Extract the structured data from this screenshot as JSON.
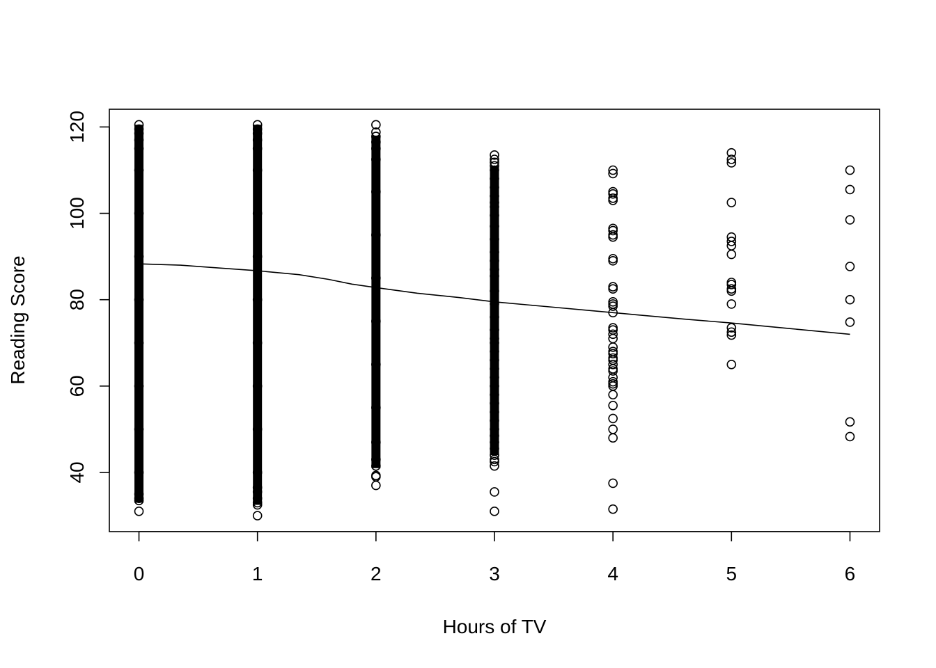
{
  "chart_data": {
    "type": "scatter",
    "title": "",
    "xlabel": "Hours of TV",
    "ylabel": "Reading Score",
    "xlim": [
      -0.25,
      6.25
    ],
    "ylim": [
      26.3,
      124.1
    ],
    "x_ticks": [
      0,
      1,
      2,
      3,
      4,
      5,
      6
    ],
    "y_ticks": [
      40,
      60,
      80,
      100,
      120
    ],
    "dense_bands": [
      {
        "x": 0,
        "y_min": 33.0,
        "y_max": 120.5
      },
      {
        "x": 1,
        "y_min": 32.5,
        "y_max": 120.5
      },
      {
        "x": 2,
        "y_min": 41.0,
        "y_max": 118.0
      },
      {
        "x": 3,
        "y_min": 44.0,
        "y_max": 111.0
      }
    ],
    "series": [
      {
        "name": "x0",
        "x": 0,
        "y": [
          120.5,
          119.5,
          118.5,
          117,
          115,
          110,
          100,
          90,
          80,
          70,
          60,
          50,
          40,
          35,
          34,
          33.5,
          31.0
        ]
      },
      {
        "name": "x1",
        "x": 1,
        "y": [
          120.5,
          119.5,
          118.5,
          117,
          115,
          110,
          100,
          90,
          80,
          70,
          60,
          50,
          40,
          36.5,
          35.5,
          34,
          33,
          32.5,
          30.0
        ]
      },
      {
        "name": "x2",
        "x": 2,
        "y": [
          120.5,
          118.8,
          117.8,
          116.5,
          115,
          112.5,
          105,
          95,
          85,
          75,
          65,
          55,
          47,
          43,
          41.5,
          39.3,
          39.0,
          37.0
        ]
      },
      {
        "name": "x3",
        "x": 3,
        "y": [
          113.5,
          112.5,
          111.8,
          111.0,
          110,
          108,
          106,
          104,
          102.5,
          101.5,
          99.5,
          97,
          94,
          91,
          89,
          87,
          85.5,
          82,
          79,
          76,
          73,
          71,
          70,
          68,
          66,
          64,
          62,
          60,
          58,
          56,
          54,
          52,
          50,
          48.5,
          47,
          45.5,
          44,
          43,
          42.5,
          41.5,
          35.5,
          31.0
        ]
      },
      {
        "name": "x4",
        "x": 4,
        "y": [
          110.0,
          109.2,
          105.0,
          104.5,
          103.5,
          103.0,
          96.5,
          96.0,
          95.0,
          94.5,
          89.5,
          89.0,
          83.0,
          82.5,
          79.5,
          79.0,
          78.5,
          77.0,
          73.5,
          73.0,
          72.0,
          71.0,
          69.0,
          68.0,
          67.5,
          66.5,
          66.0,
          65.0,
          64.0,
          63.5,
          62.0,
          61.0,
          60.5,
          60.0,
          58.0,
          55.5,
          52.5,
          50.0,
          48.0,
          37.5,
          31.5
        ]
      },
      {
        "name": "x5",
        "x": 5,
        "y": [
          114.0,
          112.5,
          111.7,
          102.5,
          94.5,
          93.5,
          92.5,
          90.5,
          84.0,
          83.5,
          82.5,
          82.0,
          79.0,
          73.5,
          72.5,
          71.8,
          65.0
        ]
      },
      {
        "name": "x6",
        "x": 6,
        "y": [
          110.0,
          105.5,
          98.5,
          87.7,
          80.0,
          74.8,
          51.7,
          48.3
        ]
      },
      {
        "name": "trend",
        "x": [
          0,
          0.35,
          0.7,
          1.0,
          1.35,
          1.6,
          1.8,
          2.0,
          2.35,
          2.7,
          3.0,
          3.4,
          3.8,
          4.2,
          4.6,
          5.0,
          5.5,
          6.0
        ],
        "y": [
          88.3,
          88.0,
          87.3,
          86.7,
          85.8,
          84.7,
          83.6,
          82.8,
          81.5,
          80.5,
          79.5,
          78.5,
          77.5,
          76.5,
          75.5,
          74.6,
          73.3,
          72.0
        ]
      }
    ]
  }
}
